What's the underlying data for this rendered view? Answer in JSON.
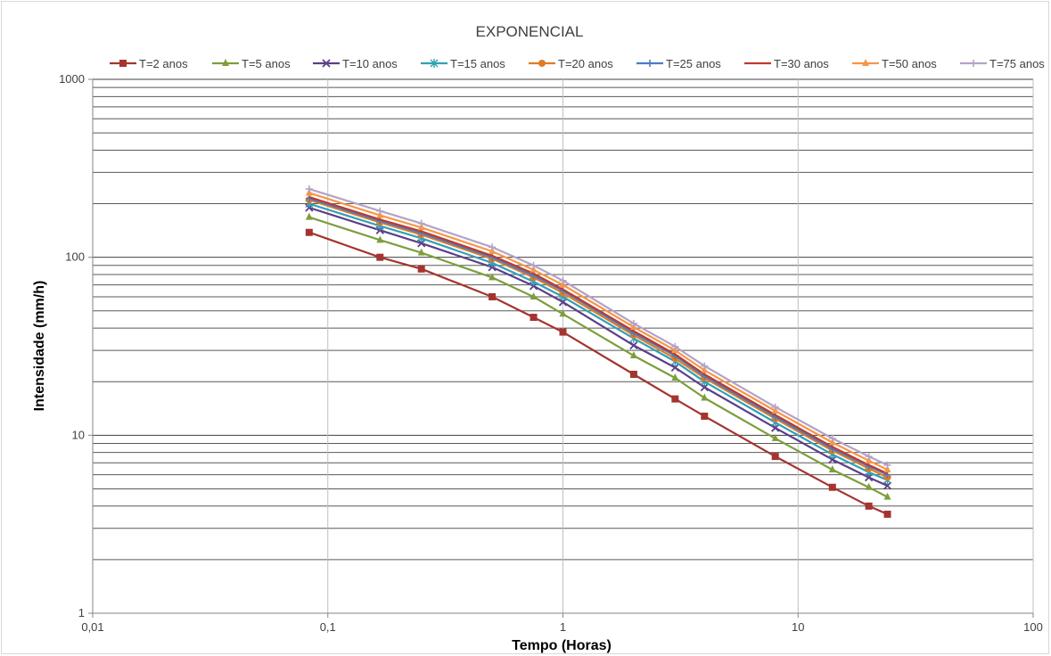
{
  "chart_data": {
    "type": "line",
    "title": "EXPONENCIAL",
    "xlabel": "Tempo (Horas)",
    "ylabel": "Intensidade (mm/h)",
    "xscale": "log",
    "yscale": "log",
    "xlim": [
      0.01,
      100
    ],
    "ylim": [
      1,
      1000
    ],
    "xticks": [
      "0,01",
      "0,1",
      "1",
      "10",
      "100"
    ],
    "yticks": [
      "1",
      "10",
      "100",
      "1000"
    ],
    "grid": "major and minor horizontal, major vertical",
    "legend_position": "top",
    "x": [
      0.0833,
      0.1667,
      0.25,
      0.5,
      0.75,
      1,
      2,
      3,
      4,
      8,
      14,
      20,
      24
    ],
    "series": [
      {
        "name": "T=2 anos",
        "color": "#a5342e",
        "marker": "square",
        "values": [
          138,
          100,
          86,
          60,
          46,
          38,
          22,
          16,
          12.8,
          7.6,
          5.1,
          4.0,
          3.6
        ]
      },
      {
        "name": "T=5 anos",
        "color": "#7e9e3c",
        "marker": "triangle",
        "values": [
          168,
          125,
          106,
          77,
          60,
          48,
          28,
          21,
          16.2,
          9.6,
          6.4,
          5.1,
          4.5
        ]
      },
      {
        "name": "T=10 anos",
        "color": "#5b3f87",
        "marker": "x",
        "values": [
          190,
          142,
          120,
          88,
          69,
          56,
          32,
          24,
          18.6,
          11,
          7.3,
          5.8,
          5.2
        ]
      },
      {
        "name": "T=15 anos",
        "color": "#31a0b6",
        "marker": "star",
        "values": [
          200,
          150,
          128,
          93,
          73,
          60,
          35,
          26,
          20,
          11.8,
          7.8,
          6.2,
          5.6
        ]
      },
      {
        "name": "T=20 anos",
        "color": "#e07b24",
        "marker": "circle",
        "values": [
          210,
          157,
          134,
          98,
          77,
          63,
          36.5,
          27,
          21,
          12.4,
          8.2,
          6.5,
          5.8
        ]
      },
      {
        "name": "T=25 anos",
        "color": "#4a7dc4",
        "marker": "plus",
        "values": [
          214,
          160,
          137,
          100,
          79,
          65,
          37.5,
          28,
          21.5,
          12.7,
          8.4,
          6.7,
          6.0
        ]
      },
      {
        "name": "T=30 anos",
        "color": "#c0392b",
        "marker": "none",
        "values": [
          218,
          163,
          140,
          102,
          81,
          66,
          38.5,
          28.5,
          22,
          13,
          8.6,
          6.8,
          6.1
        ]
      },
      {
        "name": "T=50 anos",
        "color": "#f79646",
        "marker": "triangle",
        "values": [
          230,
          172,
          147,
          108,
          85,
          70,
          40.5,
          30,
          23.2,
          13.7,
          9.1,
          7.2,
          6.4
        ]
      },
      {
        "name": "T=75 anos",
        "color": "#b3a2c7",
        "marker": "plus",
        "values": [
          242,
          182,
          155,
          114,
          90,
          74,
          42.5,
          31.5,
          24.5,
          14.4,
          9.6,
          7.6,
          6.8
        ]
      }
    ]
  }
}
